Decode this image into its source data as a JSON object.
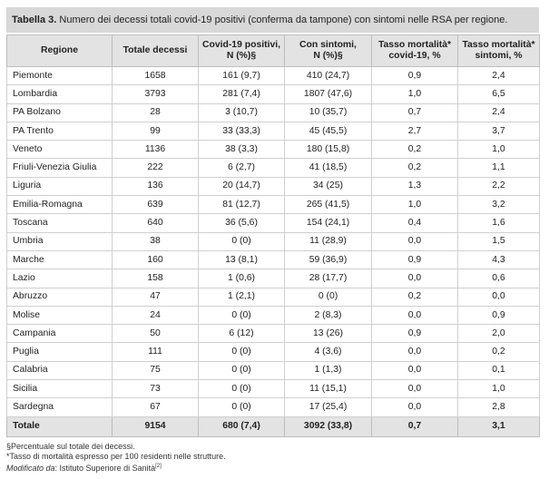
{
  "caption": {
    "label": "Tabella 3.",
    "text": "Numero dei decessi totali covid-19 positivi (conferma da tampone) con sintomi nelle RSA per regione."
  },
  "headers": [
    [
      "Regione"
    ],
    [
      "Totale decessi"
    ],
    [
      "Covid-19 positivi,",
      "N (%)§"
    ],
    [
      "Con sintomi,",
      "N (%)§"
    ],
    [
      "Tasso mortalità*",
      "covid-19, %"
    ],
    [
      "Tasso mortalità*",
      "sintomi, %"
    ]
  ],
  "rows": [
    [
      "Piemonte",
      "1658",
      "161 (9,7)",
      "410 (24,7)",
      "0,9",
      "2,4"
    ],
    [
      "Lombardia",
      "3793",
      "281 (7,4)",
      "1807 (47,6)",
      "1,0",
      "6,5"
    ],
    [
      "PA Bolzano",
      "28",
      "3 (10,7)",
      "10 (35,7)",
      "0,7",
      "2,4"
    ],
    [
      "PA Trento",
      "99",
      "33 (33,3)",
      "45 (45,5)",
      "2,7",
      "3,7"
    ],
    [
      "Veneto",
      "1136",
      "38 (3,3)",
      "180 (15,8)",
      "0,2",
      "1,0"
    ],
    [
      "Friuli-Venezia Giulia",
      "222",
      "6 (2,7)",
      "41 (18,5)",
      "0,2",
      "1,1"
    ],
    [
      "Liguria",
      "136",
      "20 (14,7)",
      "34 (25)",
      "1,3",
      "2,2"
    ],
    [
      "Emilia-Romagna",
      "639",
      "81 (12,7)",
      "265 (41,5)",
      "1,0",
      "3,2"
    ],
    [
      "Toscana",
      "640",
      "36 (5,6)",
      "154 (24,1)",
      "0,4",
      "1,6"
    ],
    [
      "Umbria",
      "38",
      "0 (0)",
      "11 (28,9)",
      "0,0",
      "1,5"
    ],
    [
      "Marche",
      "160",
      "13 (8,1)",
      "59 (36,9)",
      "0,9",
      "4,3"
    ],
    [
      "Lazio",
      "158",
      "1 (0,6)",
      "28 (17,7)",
      "0,0",
      "0,6"
    ],
    [
      "Abruzzo",
      "47",
      "1 (2,1)",
      "0 (0)",
      "0,2",
      "0,0"
    ],
    [
      "Molise",
      "24",
      "0 (0)",
      "2 (8,3)",
      "0,0",
      "0,9"
    ],
    [
      "Campania",
      "50",
      "6 (12)",
      "13 (26)",
      "0,9",
      "2,0"
    ],
    [
      "Puglia",
      "111",
      "0 (0)",
      "4 (3,6)",
      "0,0",
      "0,2"
    ],
    [
      "Calabria",
      "75",
      "0 (0)",
      "1 (1,3)",
      "0,0",
      "0,1"
    ],
    [
      "Sicilia",
      "73",
      "0 (0)",
      "11 (15,1)",
      "0,0",
      "1,0"
    ],
    [
      "Sardegna",
      "67",
      "0 (0)",
      "17 (25,4)",
      "0,0",
      "2,8"
    ]
  ],
  "total": [
    "Totale",
    "9154",
    "680 (7,4)",
    "3092 (33,8)",
    "0,7",
    "3,1"
  ],
  "notes": {
    "line1": "§Percentuale sul totale dei decessi.",
    "line2": "*Tasso di mortalità espresso per 100 residenti nelle strutture.",
    "line3_label": "Modificato da",
    "line3_text": ": Istituto Superiore di Sanità",
    "line3_ref": "[2]"
  },
  "colors": {
    "header_bg": "#e3e3e3",
    "caption_bg": "#d8d8d8",
    "border": "#d0d0d0"
  }
}
